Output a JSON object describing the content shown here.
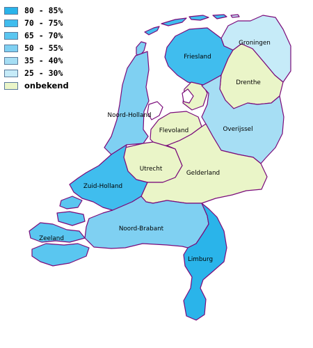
{
  "legend": [
    {
      "label": "80 - 85%",
      "color": "#2ab4ea"
    },
    {
      "label": "70 - 75%",
      "color": "#40bdee"
    },
    {
      "label": "65 - 70%",
      "color": "#5ac6f0"
    },
    {
      "label": "50 - 55%",
      "color": "#7fd0f2"
    },
    {
      "label": "35 - 40%",
      "color": "#a6def4"
    },
    {
      "label": "25 - 30%",
      "color": "#c6ebf8"
    },
    {
      "label": "onbekend",
      "color": "#eaf5c8"
    }
  ],
  "provinces": {
    "groningen": {
      "name": "Groningen",
      "category": "25 - 30%"
    },
    "friesland": {
      "name": "Friesland",
      "category": "70 - 75%"
    },
    "drenthe": {
      "name": "Drenthe",
      "category": "onbekend"
    },
    "noord_holland": {
      "name": "Noord-Holland",
      "category": "50 - 55%"
    },
    "flevoland": {
      "name": "Flevoland",
      "category": "onbekend"
    },
    "overijssel": {
      "name": "Overijssel",
      "category": "35 - 40%"
    },
    "utrecht": {
      "name": "Utrecht",
      "category": "onbekend"
    },
    "gelderland": {
      "name": "Gelderland",
      "category": "onbekend"
    },
    "zuid_holland": {
      "name": "Zuid-Holland",
      "category": "70 - 75%"
    },
    "zeeland": {
      "name": "Zeeland",
      "category": "65 - 70%"
    },
    "noord_brabant": {
      "name": "Noord-Brabant",
      "category": "50 - 55%"
    },
    "limburg": {
      "name": "Limburg",
      "category": "80 - 85%"
    }
  }
}
